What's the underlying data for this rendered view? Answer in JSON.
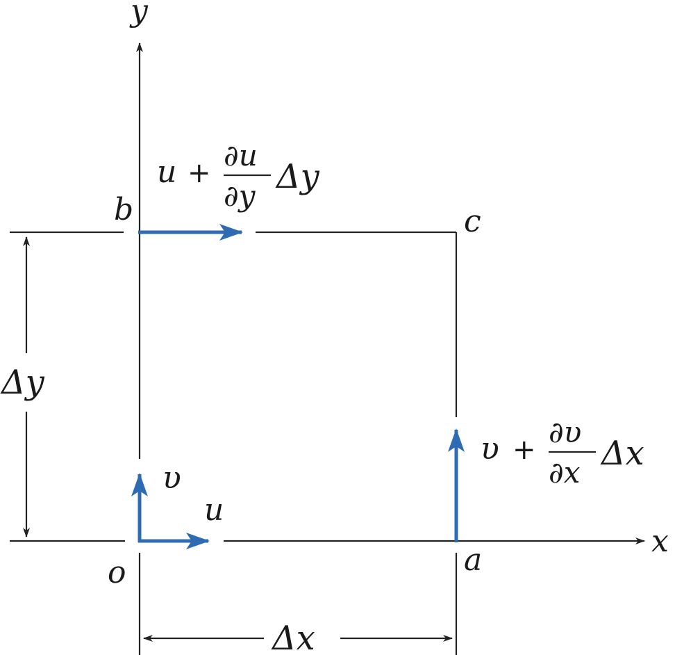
{
  "axes": {
    "x": "x",
    "y": "y"
  },
  "corners": {
    "o": "o",
    "a": "a",
    "b": "b",
    "c": "c"
  },
  "dimensions": {
    "delta_x": "Δx",
    "delta_y": "Δy"
  },
  "vectors": {
    "u": "u",
    "v": "υ",
    "top": {
      "base": "u",
      "plus": "+",
      "num": "∂u",
      "den": "∂y",
      "tail": "Δy"
    },
    "right": {
      "base": "υ",
      "plus": "+",
      "num": "∂υ",
      "den": "∂x",
      "tail": "Δx"
    }
  },
  "colors": {
    "arrow": "#2f6bb3",
    "line": "#222222"
  }
}
